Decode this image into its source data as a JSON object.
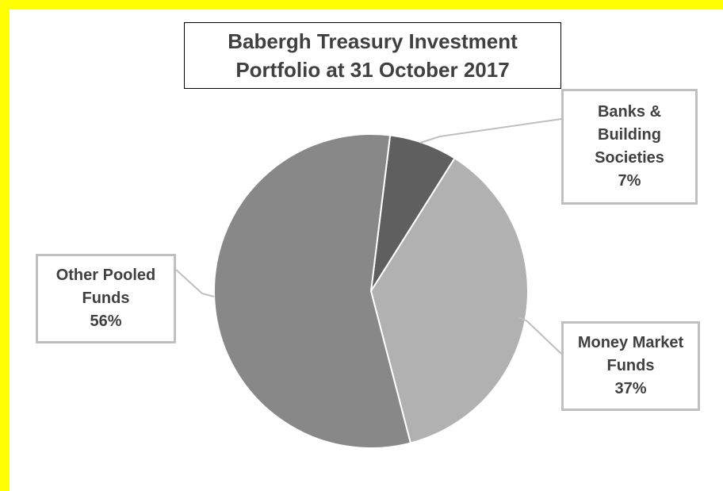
{
  "chart_data": {
    "type": "pie",
    "title": "Babergh Treasury Investment Portfolio at 31 October 2017",
    "categories": [
      "Banks & Building Societies",
      "Money Market Funds",
      "Other Pooled Funds"
    ],
    "values": [
      7,
      37,
      56
    ],
    "value_labels": [
      "7%",
      "37%",
      "56%"
    ],
    "colors": [
      "#5f5f5f",
      "#b1b1b1",
      "#888888"
    ]
  }
}
